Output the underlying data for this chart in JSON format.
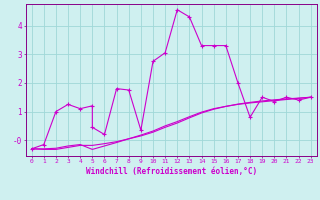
{
  "xlabel": "Windchill (Refroidissement éolien,°C)",
  "xlim": [
    -0.5,
    23.5
  ],
  "ylim": [
    -0.55,
    4.75
  ],
  "yticks": [
    0,
    1,
    2,
    3,
    4
  ],
  "ytick_labels": [
    "-0",
    "1",
    "2",
    "3",
    "4"
  ],
  "xticks": [
    0,
    1,
    2,
    3,
    4,
    5,
    6,
    7,
    8,
    9,
    10,
    11,
    12,
    13,
    14,
    15,
    16,
    17,
    18,
    19,
    20,
    21,
    22,
    23
  ],
  "bg_color": "#cff0f0",
  "grid_color": "#a0d8d8",
  "line_color": "#cc00cc",
  "spine_color": "#880088",
  "curve1_x": [
    0,
    1,
    2,
    3,
    4,
    5,
    5,
    6,
    7,
    8,
    9,
    10,
    11,
    12,
    13,
    14,
    15,
    16,
    17,
    18,
    19,
    20,
    21,
    22,
    23
  ],
  "curve1_y": [
    -0.3,
    -0.15,
    1.0,
    1.25,
    1.1,
    1.2,
    0.45,
    0.2,
    1.8,
    1.75,
    0.35,
    2.75,
    3.05,
    4.55,
    4.3,
    3.3,
    3.3,
    3.3,
    2.0,
    0.8,
    1.5,
    1.35,
    1.5,
    1.4,
    1.5
  ],
  "curve2_x": [
    0,
    1,
    2,
    3,
    4,
    5,
    6,
    7,
    8,
    9,
    10,
    11,
    12,
    13,
    14,
    15,
    16,
    17,
    18,
    19,
    20,
    21,
    22,
    23
  ],
  "curve2_y": [
    -0.3,
    -0.3,
    -0.28,
    -0.2,
    -0.15,
    -0.32,
    -0.2,
    -0.08,
    0.05,
    0.18,
    0.32,
    0.5,
    0.65,
    0.82,
    0.98,
    1.1,
    1.18,
    1.25,
    1.3,
    1.34,
    1.38,
    1.42,
    1.46,
    1.5
  ],
  "curve3_x": [
    0,
    1,
    2,
    3,
    4,
    5,
    6,
    7,
    8,
    9,
    10,
    11,
    12,
    13,
    14,
    15,
    16,
    17,
    18,
    19,
    20,
    21,
    22,
    23
  ],
  "curve3_y": [
    -0.3,
    -0.32,
    -0.32,
    -0.25,
    -0.18,
    -0.18,
    -0.12,
    -0.05,
    0.05,
    0.15,
    0.28,
    0.45,
    0.6,
    0.78,
    0.95,
    1.08,
    1.18,
    1.26,
    1.32,
    1.37,
    1.41,
    1.44,
    1.47,
    1.5
  ]
}
